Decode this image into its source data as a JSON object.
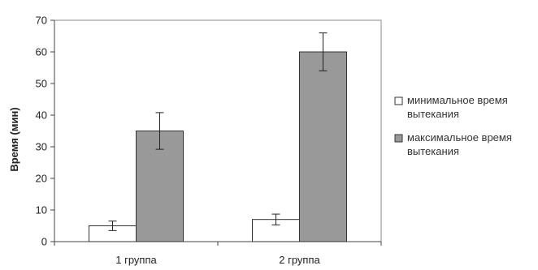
{
  "chart_data": {
    "type": "bar",
    "ylabel": "Время (мин)",
    "xlabel": "",
    "title": "",
    "ylim": [
      0,
      70
    ],
    "yticks": [
      0,
      10,
      20,
      30,
      40,
      50,
      60,
      70
    ],
    "categories": [
      "1 группа",
      "2 группа"
    ],
    "series": [
      {
        "name": "минимальное время вытекания",
        "legend_lines": [
          "минимальное время",
          "вытекания"
        ],
        "color": "#ffffff",
        "values": [
          5,
          7
        ],
        "error": [
          1.5,
          1.7
        ]
      },
      {
        "name": "максимальное время вытекания",
        "legend_lines": [
          "максимальное время",
          "вытекания"
        ],
        "color": "#999999",
        "values": [
          35,
          60
        ],
        "error": [
          5.8,
          6
        ]
      }
    ],
    "grid": false,
    "legend_position": "right"
  }
}
